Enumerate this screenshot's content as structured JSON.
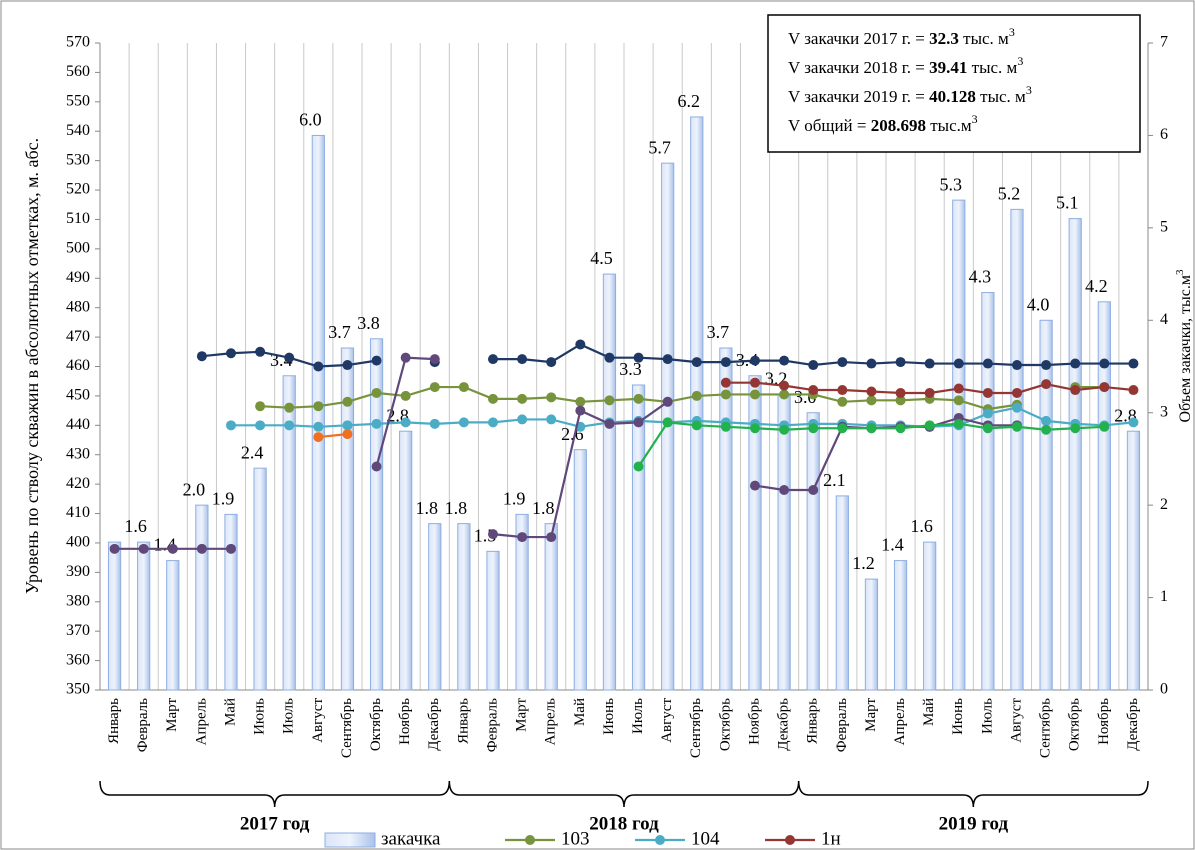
{
  "chart_data": {
    "type": "combo",
    "ylabel": "Уровень по стволу скважин в абсолютных отметках, м. абс.",
    "y2label": "Объем закачки, тыс.м",
    "y2label_sup": "3",
    "ylim": [
      350,
      570
    ],
    "yticks": [
      350,
      360,
      370,
      380,
      390,
      400,
      410,
      420,
      430,
      440,
      450,
      460,
      470,
      480,
      490,
      500,
      510,
      520,
      530,
      540,
      550,
      560,
      570
    ],
    "y2lim": [
      0,
      7
    ],
    "y2ticks": [
      0,
      1,
      2,
      3,
      4,
      5,
      6,
      7
    ],
    "categories": [
      "Январь",
      "Февраль",
      "Март",
      "Апрель",
      "Май",
      "Июнь",
      "Июль",
      "Август",
      "Сентябрь",
      "Октябрь",
      "Ноябрь",
      "Декабрь",
      "Январь",
      "Февраль",
      "Март",
      "Апрель",
      "Май",
      "Июнь",
      "Июль",
      "Август",
      "Сентябрь",
      "Октябрь",
      "Ноябрь",
      "Декабрь",
      "Январь",
      "Февраль",
      "Март",
      "Апрель",
      "Май",
      "Июнь",
      "Июль",
      "Август",
      "Сентябрь",
      "Октябрь",
      "Ноябрь",
      "Декабрь"
    ],
    "groups": [
      "2017 год",
      "2018 год",
      "2019 год"
    ],
    "legend": "bottom",
    "series": [
      {
        "name": "закачка",
        "type": "bar",
        "axis": "y2",
        "color": "#8eaee0",
        "values": [
          1.6,
          1.6,
          1.4,
          2.0,
          1.9,
          2.4,
          3.4,
          6.0,
          3.7,
          3.8,
          2.8,
          1.8,
          1.8,
          1.5,
          1.9,
          1.8,
          2.6,
          4.5,
          3.3,
          5.7,
          6.2,
          3.7,
          3.4,
          3.2,
          3.0,
          2.1,
          1.2,
          1.4,
          1.6,
          5.3,
          4.3,
          5.2,
          4.0,
          5.1,
          4.2,
          2.8
        ],
        "value_labels": [
          null,
          "1.6",
          "1.4",
          "2.0",
          "1.9",
          "2.4",
          "3.4",
          "6.0",
          "3.7",
          "3.8",
          "2.8",
          "1.8",
          "1.8",
          "1.5",
          "1.9",
          "1.8",
          "2.6",
          "4.5",
          "3.3",
          "5.7",
          "6.2",
          "3.7",
          "3.4",
          "3.2",
          "3.0",
          "2.1",
          "1.2",
          "1.4",
          "1.6",
          "5.3",
          "4.3",
          "5.2",
          "4.0",
          "5.1",
          "4.2",
          "2.8"
        ]
      },
      {
        "type": "line",
        "color": "#1f3864",
        "values": [
          null,
          null,
          null,
          463.5,
          464.5,
          465,
          463,
          460,
          460.5,
          462,
          null,
          461.5,
          null,
          462.5,
          462.5,
          461.5,
          467.5,
          463,
          463,
          462.5,
          461.5,
          461.5,
          462,
          462,
          460.5,
          461.5,
          461,
          461.5,
          461,
          461,
          461,
          460.5,
          460.5,
          461,
          461,
          461
        ]
      },
      {
        "name": "103",
        "type": "line",
        "color": "#77933c",
        "values": [
          null,
          null,
          null,
          null,
          null,
          446.5,
          446,
          446.5,
          448,
          451,
          450,
          453,
          453,
          449,
          449,
          449.5,
          448,
          448.5,
          449,
          448,
          450,
          450.5,
          450.5,
          450.5,
          450.5,
          448,
          448.5,
          448.5,
          449,
          448.5,
          445.5,
          447,
          null,
          453,
          453,
          null
        ]
      },
      {
        "name": "104",
        "type": "line",
        "color": "#4bacc6",
        "values": [
          null,
          null,
          null,
          null,
          440,
          440,
          440,
          439.5,
          440,
          440.5,
          441,
          440.5,
          441,
          441,
          442,
          442,
          439.5,
          441,
          441.5,
          441,
          441.5,
          441,
          440.5,
          440,
          440.5,
          440.5,
          440,
          440,
          439.5,
          440,
          444,
          446,
          441.5,
          440.5,
          440,
          441
        ]
      },
      {
        "name": "1н",
        "type": "line",
        "color": "#943634",
        "values": [
          null,
          null,
          null,
          null,
          null,
          null,
          null,
          null,
          null,
          null,
          null,
          null,
          null,
          null,
          null,
          null,
          null,
          null,
          null,
          null,
          null,
          454.5,
          454.5,
          453.5,
          452,
          452,
          451.5,
          451,
          451,
          452.5,
          451,
          451,
          454,
          452,
          453,
          452
        ]
      },
      {
        "type": "line",
        "color": "#60497a",
        "values": [
          398,
          398,
          398,
          398,
          398,
          null,
          null,
          null,
          null,
          426,
          463,
          462.5,
          null,
          403,
          402,
          402,
          445,
          440.5,
          441,
          448,
          null,
          null,
          419.5,
          418,
          418,
          439.5,
          439,
          439.5,
          439.5,
          442.5,
          440,
          440,
          null,
          null,
          null,
          null
        ]
      },
      {
        "type": "line",
        "color": "#f07020",
        "values": [
          null,
          null,
          null,
          null,
          null,
          null,
          null,
          436,
          437,
          null,
          null,
          null,
          null,
          null,
          null,
          null,
          null,
          null,
          null,
          null,
          null,
          null,
          null,
          null,
          null,
          null,
          null,
          null,
          null,
          null,
          null,
          null,
          null,
          null,
          null,
          null
        ]
      },
      {
        "type": "line",
        "color": "#22b14c",
        "values": [
          null,
          null,
          null,
          null,
          null,
          null,
          null,
          null,
          null,
          null,
          null,
          null,
          null,
          null,
          null,
          null,
          null,
          null,
          426,
          441,
          440,
          439.5,
          439,
          438.5,
          439,
          439,
          439,
          439,
          440,
          440.5,
          439,
          439.5,
          438.5,
          439,
          439.5,
          null
        ]
      }
    ],
    "summary": [
      {
        "label": "V закачки 2017 г. = ",
        "value": "32.3",
        "unit": " тыс. м",
        "sup": "3"
      },
      {
        "label": "V закачки 2018 г. = ",
        "value": "39.41",
        "unit": " тыс. м",
        "sup": "3"
      },
      {
        "label": "V закачки 2019 г. = ",
        "value": "40.128",
        "unit": " тыс. м",
        "sup": "3"
      },
      {
        "label": "V общий = ",
        "value": "208.698",
        "unit": "  тыс.м",
        "sup": "3"
      }
    ]
  }
}
